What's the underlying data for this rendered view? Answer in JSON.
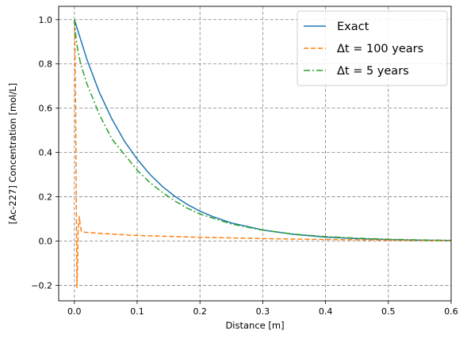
{
  "chart_data": {
    "type": "line",
    "title": "",
    "xlabel": "Distance [m]",
    "ylabel": "[Ac-227] Concentration [mol/L]",
    "xlim": [
      -0.025,
      0.6
    ],
    "ylim": [
      -0.27,
      1.06
    ],
    "xticks": [
      0.0,
      0.1,
      0.2,
      0.3,
      0.4,
      0.5,
      0.6
    ],
    "xtick_labels": [
      "0.0",
      "0.1",
      "0.2",
      "0.3",
      "0.4",
      "0.5",
      "0.6"
    ],
    "yticks": [
      -0.2,
      0.0,
      0.2,
      0.4,
      0.6,
      0.8,
      1.0
    ],
    "ytick_labels": [
      "−0.2",
      "0.0",
      "0.2",
      "0.4",
      "0.6",
      "0.8",
      "1.0"
    ],
    "grid": true,
    "legend_position": "top-right",
    "series": [
      {
        "name": "Exact",
        "color": "#1f77b4",
        "dash": "solid",
        "x": [
          0.0,
          0.02,
          0.04,
          0.06,
          0.08,
          0.1,
          0.12,
          0.14,
          0.16,
          0.18,
          0.2,
          0.22,
          0.25,
          0.3,
          0.35,
          0.4,
          0.45,
          0.5,
          0.55,
          0.6
        ],
        "y": [
          1.0,
          0.82,
          0.67,
          0.55,
          0.45,
          0.37,
          0.302,
          0.247,
          0.202,
          0.165,
          0.135,
          0.111,
          0.082,
          0.05,
          0.03,
          0.018,
          0.011,
          0.0067,
          0.0041,
          0.0025
        ]
      },
      {
        "name": "Δt = 100 years",
        "color": "#ff7f0e",
        "dash": "dashed",
        "x": [
          0.0,
          0.001,
          0.002,
          0.003,
          0.004,
          0.005,
          0.006,
          0.008,
          0.009,
          0.011,
          0.013,
          0.015,
          0.05,
          0.1,
          0.2,
          0.3,
          0.4,
          0.5,
          0.6
        ],
        "y": [
          1.0,
          0.85,
          0.6,
          0.2,
          -0.21,
          -0.13,
          0.05,
          0.11,
          0.08,
          0.045,
          0.04,
          0.04,
          0.033,
          0.025,
          0.017,
          0.011,
          0.007,
          0.004,
          0.002
        ]
      },
      {
        "name": "Δt = 5 years",
        "color": "#2ca02c",
        "dash": "dashdot",
        "x": [
          0.0,
          0.0025,
          0.005,
          0.01,
          0.02,
          0.04,
          0.06,
          0.08,
          0.1,
          0.12,
          0.14,
          0.16,
          0.18,
          0.2,
          0.25,
          0.3,
          0.35,
          0.4,
          0.45,
          0.5,
          0.55,
          0.6
        ],
        "y": [
          1.0,
          0.92,
          0.87,
          0.8,
          0.71,
          0.57,
          0.46,
          0.39,
          0.32,
          0.265,
          0.22,
          0.181,
          0.148,
          0.122,
          0.077,
          0.049,
          0.031,
          0.02,
          0.013,
          0.008,
          0.005,
          0.003
        ]
      }
    ]
  }
}
